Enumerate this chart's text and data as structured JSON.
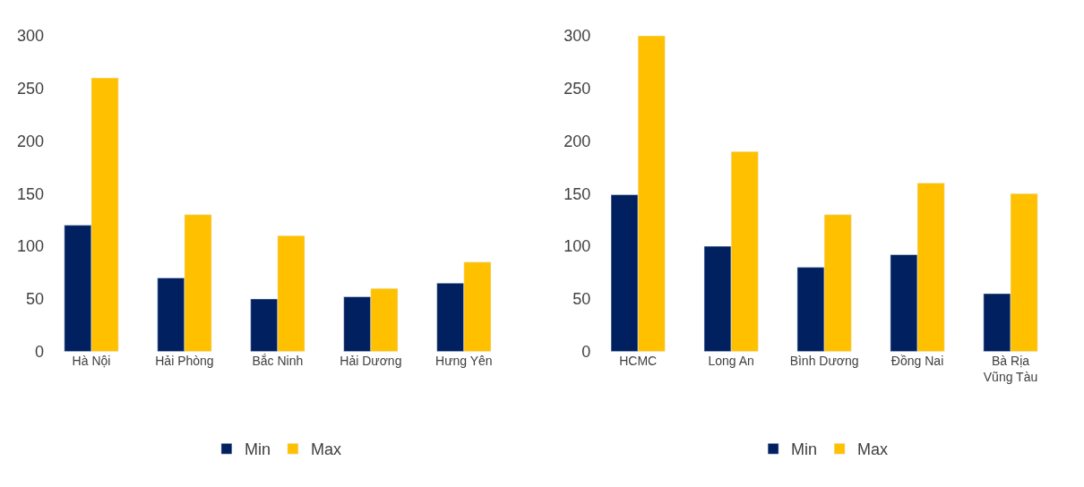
{
  "chart_data": [
    {
      "type": "bar",
      "categories": [
        "Hà Nội",
        "Hải Phòng",
        "Bắc Ninh",
        "Hải Dương",
        "Hưng Yên"
      ],
      "series": [
        {
          "name": "Min",
          "color": "#002060",
          "values": [
            120,
            70,
            50,
            52,
            65
          ]
        },
        {
          "name": "Max",
          "color": "#ffc000",
          "values": [
            260,
            130,
            110,
            60,
            85
          ]
        }
      ],
      "ylim": [
        0,
        300
      ],
      "yticks": [
        0,
        50,
        100,
        150,
        200,
        250,
        300
      ],
      "legend": "bottom"
    },
    {
      "type": "bar",
      "categories": [
        "HCMC",
        "Long An",
        "Bình Dương",
        "Đồng Nai",
        "Bà Rịa Vũng Tàu"
      ],
      "series": [
        {
          "name": "Min",
          "color": "#002060",
          "values": [
            149,
            100,
            80,
            92,
            55
          ]
        },
        {
          "name": "Max",
          "color": "#ffc000",
          "values": [
            300,
            190,
            130,
            160,
            150
          ]
        }
      ],
      "ylim": [
        0,
        300
      ],
      "yticks": [
        0,
        50,
        100,
        150,
        200,
        250,
        300
      ],
      "legend": "bottom"
    }
  ]
}
